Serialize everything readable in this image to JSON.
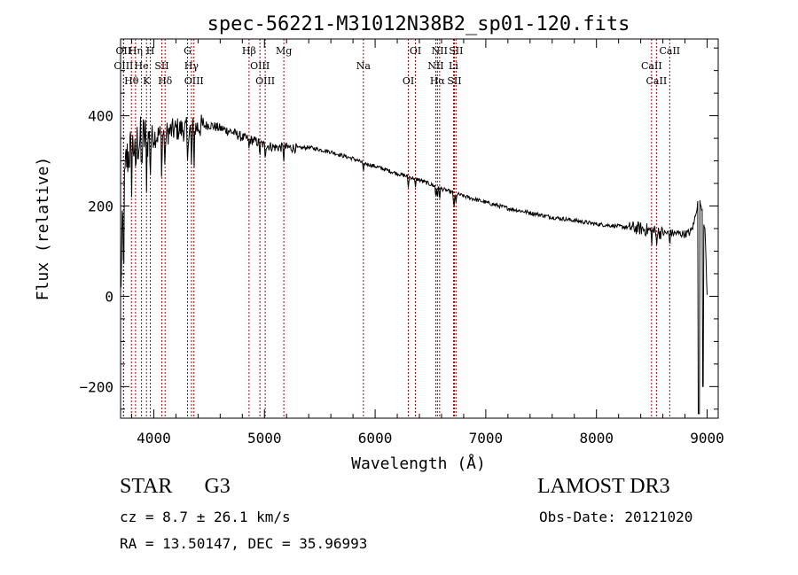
{
  "chart_data": {
    "type": "line",
    "title": "spec-56221-M31012N38B2_sp01-120.fits",
    "xlabel": "Wavelength (Å)",
    "ylabel": "Flux (relative)",
    "xlim": [
      3700,
      9100
    ],
    "ylim": [
      -270,
      570
    ],
    "xticks": [
      4000,
      5000,
      6000,
      7000,
      8000,
      9000
    ],
    "yticks": [
      -200,
      0,
      200,
      400
    ],
    "tick_labels_x": [
      "4000",
      "5000",
      "6000",
      "7000",
      "8000",
      "9000"
    ],
    "tick_labels_y": [
      "−200",
      "0",
      "200",
      "400"
    ],
    "spectrum_envelope": {
      "x": [
        3700,
        3720,
        3750,
        3800,
        3850,
        3900,
        3950,
        4000,
        4100,
        4200,
        4300,
        4400,
        4500,
        4600,
        4700,
        4800,
        4900,
        5000,
        5100,
        5200,
        5300,
        5400,
        5500,
        5600,
        5700,
        5800,
        5900,
        6000,
        6100,
        6200,
        6300,
        6400,
        6500,
        6600,
        6700,
        6800,
        6900,
        7000,
        7200,
        7400,
        7600,
        7800,
        8000,
        8200,
        8400,
        8500,
        8600,
        8700,
        8800,
        8850,
        8880,
        8900,
        8920,
        8950,
        8980,
        9000
      ],
      "y": [
        0,
        180,
        300,
        330,
        340,
        350,
        355,
        355,
        360,
        370,
        370,
        375,
        380,
        372,
        365,
        352,
        345,
        335,
        330,
        330,
        328,
        330,
        325,
        320,
        312,
        305,
        295,
        288,
        280,
        272,
        265,
        258,
        248,
        238,
        230,
        222,
        215,
        208,
        195,
        185,
        175,
        168,
        160,
        155,
        150,
        145,
        140,
        140,
        138,
        142,
        160,
        190,
        210,
        200,
        150,
        0
      ]
    },
    "lines": [
      {
        "label": "Hθ",
        "wavelength": 3798
      },
      {
        "label": "OII",
        "wavelength": 3727
      },
      {
        "label": "OIII",
        "wavelength": 3727
      },
      {
        "label": "He",
        "wavelength": 3889
      },
      {
        "label": "Hη",
        "wavelength": 3835
      },
      {
        "label": "K",
        "wavelength": 3934
      },
      {
        "label": "H",
        "wavelength": 3969
      },
      {
        "label": "SII",
        "wavelength": 4072
      },
      {
        "label": "Hδ",
        "wavelength": 4102
      },
      {
        "label": "OIII",
        "wavelength": 4363
      },
      {
        "label": "Hγ",
        "wavelength": 4340
      },
      {
        "label": "G",
        "wavelength": 4305
      },
      {
        "label": "Hβ",
        "wavelength": 4861
      },
      {
        "label": "OIII",
        "wavelength": 5007
      },
      {
        "label": "OIII",
        "wavelength": 4959
      },
      {
        "label": "Mg",
        "wavelength": 5175
      },
      {
        "label": "Na",
        "wavelength": 5894
      },
      {
        "label": "OI",
        "wavelength": 6300
      },
      {
        "label": "OI",
        "wavelength": 6364
      },
      {
        "label": "Hα",
        "wavelength": 6563
      },
      {
        "label": "NII",
        "wavelength": 6548
      },
      {
        "label": "NII",
        "wavelength": 6583
      },
      {
        "label": "SII",
        "wavelength": 6716
      },
      {
        "label": "Li",
        "wavelength": 6708
      },
      {
        "label": "SII",
        "wavelength": 6731
      },
      {
        "label": "CaII",
        "wavelength": 8498
      },
      {
        "label": "CaII",
        "wavelength": 8542
      },
      {
        "label": "CaII",
        "wavelength": 8662
      }
    ]
  },
  "info": {
    "class": "STAR",
    "subclass": "G3",
    "survey": "LAMOST DR3",
    "cz": "cz = 8.7 ± 26.1 km/s",
    "obs_date": "Obs-Date: 20121020",
    "radec": "RA =  13.50147, DEC =  35.96993"
  },
  "colors": {
    "spectrum": "#000000",
    "line_marker": "#b00000",
    "axis": "#000000"
  }
}
